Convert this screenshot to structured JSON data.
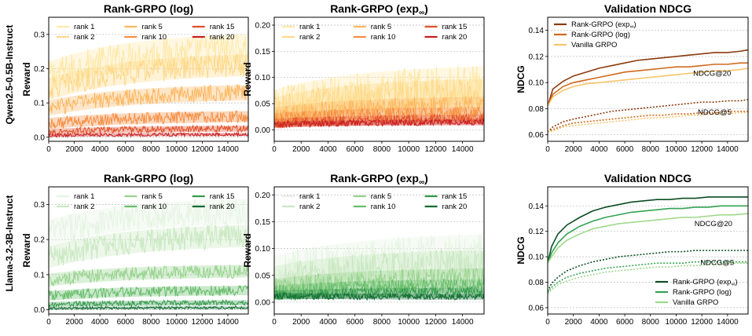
{
  "row_labels": [
    "Qwen2.5-0.5B-Instruct",
    "Llama-3.2-3B-Instruct"
  ],
  "palettes": {
    "orange": {
      "1": "#fee8a8",
      "2": "#fed98a",
      "5": "#fdb760",
      "10": "#f68f44",
      "15": "#e2502a",
      "20": "#c81d1f"
    },
    "green": {
      "1": "#e6f4e3",
      "2": "#c9e8c1",
      "5": "#98d38f",
      "10": "#66bd6a",
      "15": "#369a4e",
      "20": "#0f6b30"
    },
    "val_orange": {
      "exp": "#8c3a0d",
      "log": "#cf6a1d",
      "vanilla": "#f7c46a"
    },
    "val_green": {
      "exp": "#0b4d22",
      "log": "#34a353",
      "vanilla": "#9cd889"
    }
  },
  "chart_data": [
    {
      "id": "r1c1",
      "type": "line",
      "title": "Rank-GRPO (log)",
      "xlabel": "",
      "ylabel": "Reward",
      "xlim": [
        0,
        15600
      ],
      "ylim": [
        -0.012,
        0.35
      ],
      "xticks": [
        0,
        2000,
        4000,
        6000,
        8000,
        10000,
        12000,
        14000
      ],
      "yticks": [
        0.0,
        0.1,
        0.2,
        0.3
      ],
      "ytick_decimals": 1,
      "palette": "orange",
      "legend": {
        "position": "top",
        "columns": 3,
        "order": [
          "1",
          "2",
          "5",
          "10",
          "15",
          "20"
        ],
        "labels": {
          "1": "rank 1",
          "2": "rank 2",
          "5": "rank 5",
          "10": "rank 10",
          "15": "rank 15",
          "20": "rank 20"
        }
      },
      "series": [
        {
          "rank": "1",
          "start": 0.18,
          "end": 0.26,
          "noise": 0.045
        },
        {
          "rank": "2",
          "start": 0.14,
          "end": 0.21,
          "noise": 0.035
        },
        {
          "rank": "5",
          "start": 0.085,
          "end": 0.13,
          "noise": 0.025
        },
        {
          "rank": "10",
          "start": 0.04,
          "end": 0.06,
          "noise": 0.018
        },
        {
          "rank": "15",
          "start": 0.015,
          "end": 0.025,
          "noise": 0.01
        },
        {
          "rank": "20",
          "start": 0.005,
          "end": 0.008,
          "noise": 0.005
        }
      ]
    },
    {
      "id": "r1c2",
      "type": "line",
      "title": "Rank-GRPO (exp∞)",
      "xlabel": "",
      "ylabel": "Reward",
      "xlim": [
        0,
        15600
      ],
      "ylim": [
        -0.022,
        0.215
      ],
      "xticks": [
        0,
        2000,
        4000,
        6000,
        8000,
        10000,
        12000,
        14000
      ],
      "yticks": [
        0.0,
        0.05,
        0.1,
        0.15,
        0.2
      ],
      "ytick_decimals": 2,
      "palette": "orange",
      "legend": {
        "position": "top",
        "columns": 3,
        "order": [
          "1",
          "2",
          "5",
          "10",
          "15",
          "20"
        ],
        "labels": {
          "1": "rank 1",
          "2": "rank 2",
          "5": "rank 5",
          "10": "rank 10",
          "15": "rank 15",
          "20": "rank 20"
        }
      },
      "series": [
        {
          "rank": "1",
          "start": 0.04,
          "end": 0.085,
          "noise": 0.04
        },
        {
          "rank": "2",
          "start": 0.035,
          "end": 0.07,
          "noise": 0.03
        },
        {
          "rank": "5",
          "start": 0.025,
          "end": 0.045,
          "noise": 0.02
        },
        {
          "rank": "10",
          "start": 0.018,
          "end": 0.03,
          "noise": 0.015
        },
        {
          "rank": "15",
          "start": 0.012,
          "end": 0.02,
          "noise": 0.01
        },
        {
          "rank": "20",
          "start": 0.01,
          "end": 0.014,
          "noise": 0.006
        }
      ]
    },
    {
      "id": "r1c3",
      "type": "line",
      "title": "Validation NDCG",
      "xlabel": "",
      "ylabel": "NDCG",
      "xlim": [
        0,
        15600
      ],
      "ylim": [
        0.055,
        0.15
      ],
      "xticks": [
        0,
        2000,
        4000,
        6000,
        8000,
        10000,
        12000,
        14000
      ],
      "yticks": [
        0.06,
        0.08,
        0.1,
        0.12,
        0.14
      ],
      "ytick_decimals": 2,
      "palette": "val_orange",
      "legend": {
        "position": "top-left",
        "columns": 1,
        "order": [
          "exp",
          "log",
          "vanilla"
        ],
        "labels": {
          "exp": "Rank-GRPO (exp∞)",
          "log": "Rank-GRPO (log)",
          "vanilla": "Vanilla GRPO"
        }
      },
      "annotations": [
        {
          "text": "NDCG@20",
          "x": 12800,
          "y": 0.1052
        },
        {
          "text": "NDCG@5",
          "x": 13000,
          "y": 0.0755
        }
      ],
      "series": [
        {
          "name": "exp",
          "metric": "NDCG@20",
          "x": [
            0,
            400,
            1200,
            2000,
            3000,
            4000,
            5000,
            6000,
            7000,
            8000,
            9000,
            10000,
            11000,
            12000,
            13000,
            14000,
            15000,
            15600
          ],
          "y": [
            0.082,
            0.095,
            0.101,
            0.105,
            0.108,
            0.111,
            0.113,
            0.115,
            0.117,
            0.118,
            0.119,
            0.12,
            0.121,
            0.122,
            0.123,
            0.123,
            0.124,
            0.125
          ]
        },
        {
          "name": "log",
          "metric": "NDCG@20",
          "x": [
            0,
            400,
            1200,
            2000,
            3000,
            4000,
            5000,
            6000,
            7000,
            8000,
            9000,
            10000,
            11000,
            12000,
            13000,
            14000,
            15000,
            15600
          ],
          "y": [
            0.082,
            0.091,
            0.097,
            0.1,
            0.102,
            0.104,
            0.106,
            0.108,
            0.109,
            0.11,
            0.111,
            0.112,
            0.112,
            0.113,
            0.114,
            0.114,
            0.115,
            0.115
          ]
        },
        {
          "name": "vanilla",
          "metric": "NDCG@20",
          "x": [
            0,
            400,
            1200,
            2000,
            3000,
            4000,
            5000,
            6000,
            7000,
            8000,
            9000,
            10000,
            11000,
            12000,
            13000,
            14000,
            15000,
            15600
          ],
          "y": [
            0.082,
            0.089,
            0.094,
            0.097,
            0.099,
            0.1,
            0.101,
            0.102,
            0.103,
            0.104,
            0.105,
            0.106,
            0.107,
            0.108,
            0.109,
            0.109,
            0.11,
            0.111
          ]
        },
        {
          "name": "exp",
          "metric": "NDCG@5",
          "x": [
            0,
            400,
            1200,
            2000,
            3000,
            4000,
            5000,
            6000,
            7000,
            8000,
            9000,
            10000,
            11000,
            12000,
            13000,
            14000,
            15000,
            15600
          ],
          "y": [
            0.062,
            0.066,
            0.07,
            0.072,
            0.074,
            0.076,
            0.078,
            0.079,
            0.08,
            0.081,
            0.082,
            0.083,
            0.084,
            0.085,
            0.085,
            0.086,
            0.086,
            0.087
          ]
        },
        {
          "name": "log",
          "metric": "NDCG@5",
          "x": [
            0,
            400,
            1200,
            2000,
            3000,
            4000,
            5000,
            6000,
            7000,
            8000,
            9000,
            10000,
            11000,
            12000,
            13000,
            14000,
            15000,
            15600
          ],
          "y": [
            0.062,
            0.064,
            0.067,
            0.069,
            0.07,
            0.071,
            0.072,
            0.073,
            0.074,
            0.075,
            0.075,
            0.076,
            0.076,
            0.077,
            0.077,
            0.078,
            0.078,
            0.078
          ]
        },
        {
          "name": "vanilla",
          "metric": "NDCG@5",
          "x": [
            0,
            400,
            1200,
            2000,
            3000,
            4000,
            5000,
            6000,
            7000,
            8000,
            9000,
            10000,
            11000,
            12000,
            13000,
            14000,
            15000,
            15600
          ],
          "y": [
            0.062,
            0.063,
            0.066,
            0.067,
            0.068,
            0.069,
            0.07,
            0.071,
            0.072,
            0.073,
            0.073,
            0.074,
            0.075,
            0.075,
            0.076,
            0.076,
            0.077,
            0.077
          ]
        }
      ]
    },
    {
      "id": "r2c1",
      "type": "line",
      "title": "Rank-GRPO (log)",
      "xlabel": "",
      "ylabel": "Reward",
      "xlim": [
        0,
        15600
      ],
      "ylim": [
        -0.012,
        0.35
      ],
      "xticks": [
        0,
        2000,
        4000,
        6000,
        8000,
        10000,
        12000,
        14000
      ],
      "yticks": [
        0.0,
        0.1,
        0.2,
        0.3
      ],
      "ytick_decimals": 1,
      "palette": "green",
      "legend": {
        "position": "top",
        "columns": 3,
        "order": [
          "1",
          "2",
          "5",
          "10",
          "15",
          "20"
        ],
        "labels": {
          "1": "rank 1",
          "2": "rank 2",
          "5": "rank 5",
          "10": "rank 10",
          "15": "rank 15",
          "20": "rank 20"
        }
      },
      "series": [
        {
          "rank": "1",
          "start": 0.22,
          "end": 0.28,
          "noise": 0.04
        },
        {
          "rank": "2",
          "start": 0.15,
          "end": 0.21,
          "noise": 0.035
        },
        {
          "rank": "5",
          "start": 0.085,
          "end": 0.11,
          "noise": 0.02
        },
        {
          "rank": "10",
          "start": 0.04,
          "end": 0.055,
          "noise": 0.015
        },
        {
          "rank": "15",
          "start": 0.015,
          "end": 0.02,
          "noise": 0.008
        },
        {
          "rank": "20",
          "start": 0.004,
          "end": 0.006,
          "noise": 0.004
        }
      ]
    },
    {
      "id": "r2c2",
      "type": "line",
      "title": "Rank-GRPO (exp∞)",
      "xlabel": "",
      "ylabel": "Reward",
      "xlim": [
        0,
        15600
      ],
      "ylim": [
        -0.022,
        0.215
      ],
      "xticks": [
        0,
        2000,
        4000,
        6000,
        8000,
        10000,
        12000,
        14000
      ],
      "yticks": [
        0.0,
        0.05,
        0.1,
        0.15,
        0.2
      ],
      "ytick_decimals": 2,
      "palette": "green",
      "legend": {
        "position": "top",
        "columns": 3,
        "order": [
          "1",
          "2",
          "5",
          "10",
          "15",
          "20"
        ],
        "labels": {
          "1": "rank 1",
          "2": "rank 2",
          "5": "rank 5",
          "10": "rank 10",
          "15": "rank 15",
          "20": "rank 20"
        }
      },
      "series": [
        {
          "rank": "1",
          "start": 0.05,
          "end": 0.09,
          "noise": 0.04
        },
        {
          "rank": "2",
          "start": 0.04,
          "end": 0.07,
          "noise": 0.03
        },
        {
          "rank": "5",
          "start": 0.025,
          "end": 0.045,
          "noise": 0.02
        },
        {
          "rank": "10",
          "start": 0.018,
          "end": 0.03,
          "noise": 0.014
        },
        {
          "rank": "15",
          "start": 0.013,
          "end": 0.018,
          "noise": 0.01
        },
        {
          "rank": "20",
          "start": 0.012,
          "end": 0.01,
          "noise": 0.006
        }
      ]
    },
    {
      "id": "r2c3",
      "type": "line",
      "title": "Validation NDCG",
      "xlabel": "",
      "ylabel": "NDCG",
      "xlim": [
        0,
        15600
      ],
      "ylim": [
        0.055,
        0.155
      ],
      "xticks": [
        0,
        2000,
        4000,
        6000,
        8000,
        10000,
        12000,
        14000
      ],
      "yticks": [
        0.06,
        0.08,
        0.1,
        0.12,
        0.14
      ],
      "ytick_decimals": 2,
      "palette": "val_green",
      "legend": {
        "position": "bottom-right",
        "columns": 1,
        "order": [
          "exp",
          "log",
          "vanilla"
        ],
        "labels": {
          "exp": "Rank-GRPO (exp∞)",
          "log": "Rank-GRPO (log)",
          "vanilla": "Vanilla GRPO"
        }
      },
      "annotations": [
        {
          "text": "NDCG@20",
          "x": 12900,
          "y": 0.1242
        },
        {
          "text": "NDCG@5",
          "x": 13200,
          "y": 0.0935
        }
      ],
      "series": [
        {
          "name": "exp",
          "metric": "NDCG@20",
          "x": [
            0,
            300,
            800,
            1500,
            2500,
            3500,
            4500,
            5500,
            6500,
            7500,
            8500,
            9500,
            10500,
            11500,
            12500,
            13500,
            14500,
            15600
          ],
          "y": [
            0.095,
            0.108,
            0.118,
            0.125,
            0.131,
            0.136,
            0.139,
            0.141,
            0.143,
            0.144,
            0.145,
            0.145,
            0.146,
            0.146,
            0.147,
            0.147,
            0.147,
            0.147
          ]
        },
        {
          "name": "log",
          "metric": "NDCG@20",
          "x": [
            0,
            300,
            800,
            1500,
            2500,
            3500,
            4500,
            5500,
            6500,
            7500,
            8500,
            9500,
            10500,
            11500,
            12500,
            13500,
            14500,
            15600
          ],
          "y": [
            0.095,
            0.103,
            0.111,
            0.118,
            0.124,
            0.128,
            0.131,
            0.133,
            0.135,
            0.136,
            0.137,
            0.138,
            0.138,
            0.139,
            0.139,
            0.14,
            0.14,
            0.14
          ]
        },
        {
          "name": "vanilla",
          "metric": "NDCG@20",
          "x": [
            0,
            300,
            800,
            1500,
            2500,
            3500,
            4500,
            5500,
            6500,
            7500,
            8500,
            9500,
            10500,
            11500,
            12500,
            13500,
            14500,
            15600
          ],
          "y": [
            0.095,
            0.1,
            0.107,
            0.113,
            0.118,
            0.122,
            0.124,
            0.126,
            0.127,
            0.128,
            0.129,
            0.13,
            0.131,
            0.131,
            0.132,
            0.133,
            0.133,
            0.134
          ]
        },
        {
          "name": "exp",
          "metric": "NDCG@5",
          "x": [
            0,
            300,
            800,
            1500,
            2500,
            3500,
            4500,
            5500,
            6500,
            7500,
            8500,
            9500,
            10500,
            11500,
            12500,
            13500,
            14500,
            15600
          ],
          "y": [
            0.073,
            0.079,
            0.084,
            0.089,
            0.093,
            0.096,
            0.098,
            0.1,
            0.101,
            0.102,
            0.103,
            0.104,
            0.104,
            0.105,
            0.105,
            0.105,
            0.105,
            0.105
          ]
        },
        {
          "name": "log",
          "metric": "NDCG@5",
          "x": [
            0,
            300,
            800,
            1500,
            2500,
            3500,
            4500,
            5500,
            6500,
            7500,
            8500,
            9500,
            10500,
            11500,
            12500,
            13500,
            14500,
            15600
          ],
          "y": [
            0.072,
            0.076,
            0.08,
            0.084,
            0.087,
            0.089,
            0.091,
            0.092,
            0.093,
            0.094,
            0.095,
            0.095,
            0.095,
            0.096,
            0.096,
            0.096,
            0.096,
            0.096
          ]
        },
        {
          "name": "vanilla",
          "metric": "NDCG@5",
          "x": [
            0,
            300,
            800,
            1500,
            2500,
            3500,
            4500,
            5500,
            6500,
            7500,
            8500,
            9500,
            10500,
            11500,
            12500,
            13500,
            14500,
            15600
          ],
          "y": [
            0.071,
            0.074,
            0.078,
            0.081,
            0.084,
            0.086,
            0.088,
            0.089,
            0.09,
            0.091,
            0.092,
            0.092,
            0.093,
            0.093,
            0.094,
            0.094,
            0.095,
            0.095
          ]
        }
      ]
    }
  ]
}
